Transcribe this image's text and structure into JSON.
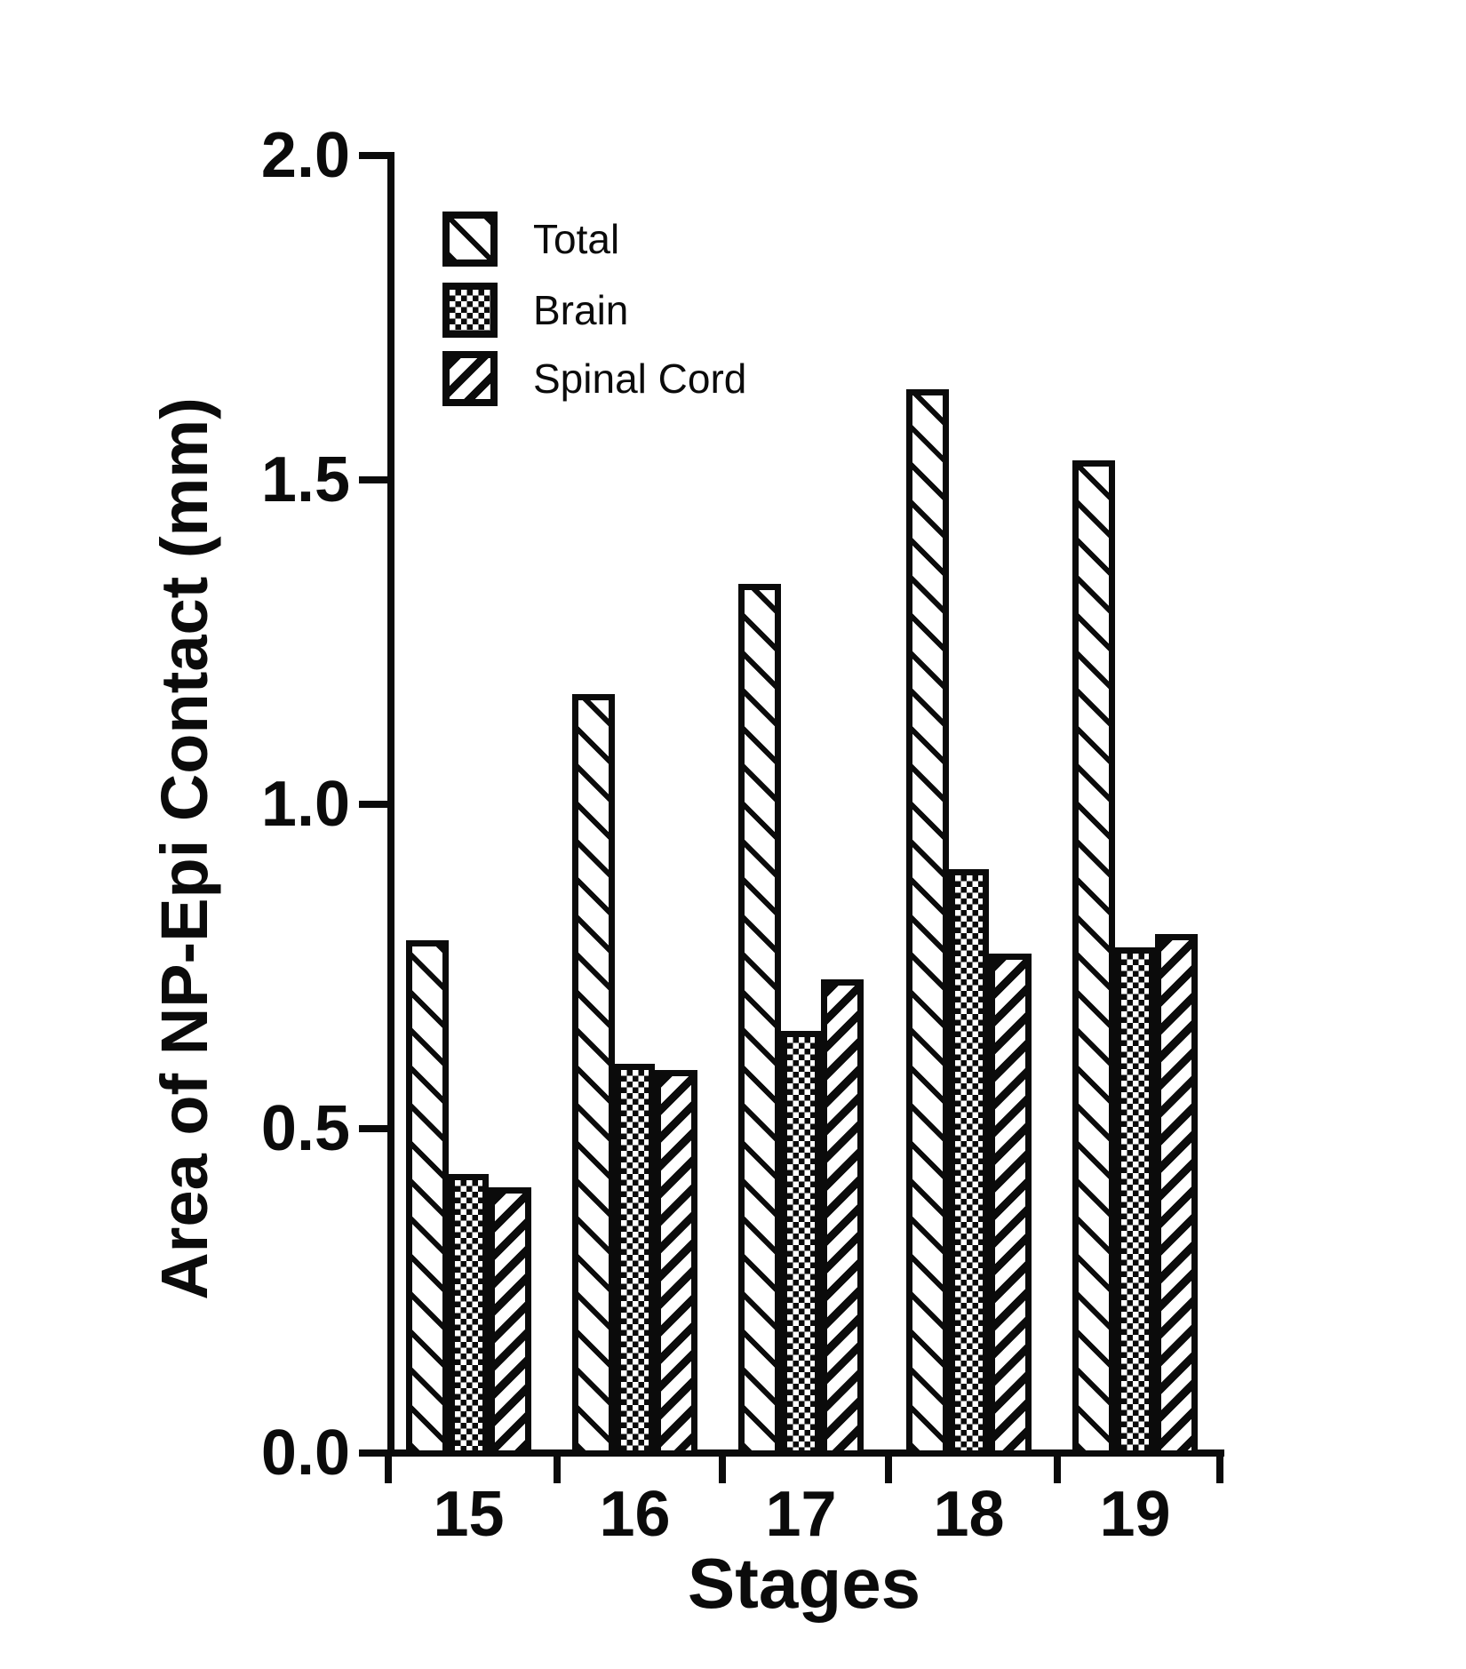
{
  "chart_data": {
    "type": "bar",
    "title": "",
    "xlabel": "Stages",
    "ylabel": "Area of NP-Epi Contact (mm)",
    "categories": [
      "15",
      "16",
      "17",
      "18",
      "19"
    ],
    "series": [
      {
        "name": "Total",
        "pattern": "diagonal-thin-backslash",
        "values": [
          0.79,
          1.17,
          1.34,
          1.64,
          1.53
        ]
      },
      {
        "name": "Brain",
        "pattern": "checkerboard",
        "values": [
          0.43,
          0.6,
          0.65,
          0.9,
          0.78
        ]
      },
      {
        "name": "Spinal Cord",
        "pattern": "diagonal-thick-slash",
        "values": [
          0.41,
          0.59,
          0.73,
          0.77,
          0.8
        ]
      }
    ],
    "ylim": [
      0.0,
      2.0
    ],
    "yticks": [
      "0.0",
      "0.5",
      "1.0",
      "1.5",
      "2.0"
    ],
    "grid": false,
    "legend_position": "top-left-inside"
  },
  "colors": {
    "ink": "#0b0b0b",
    "paper": "#ffffff"
  }
}
